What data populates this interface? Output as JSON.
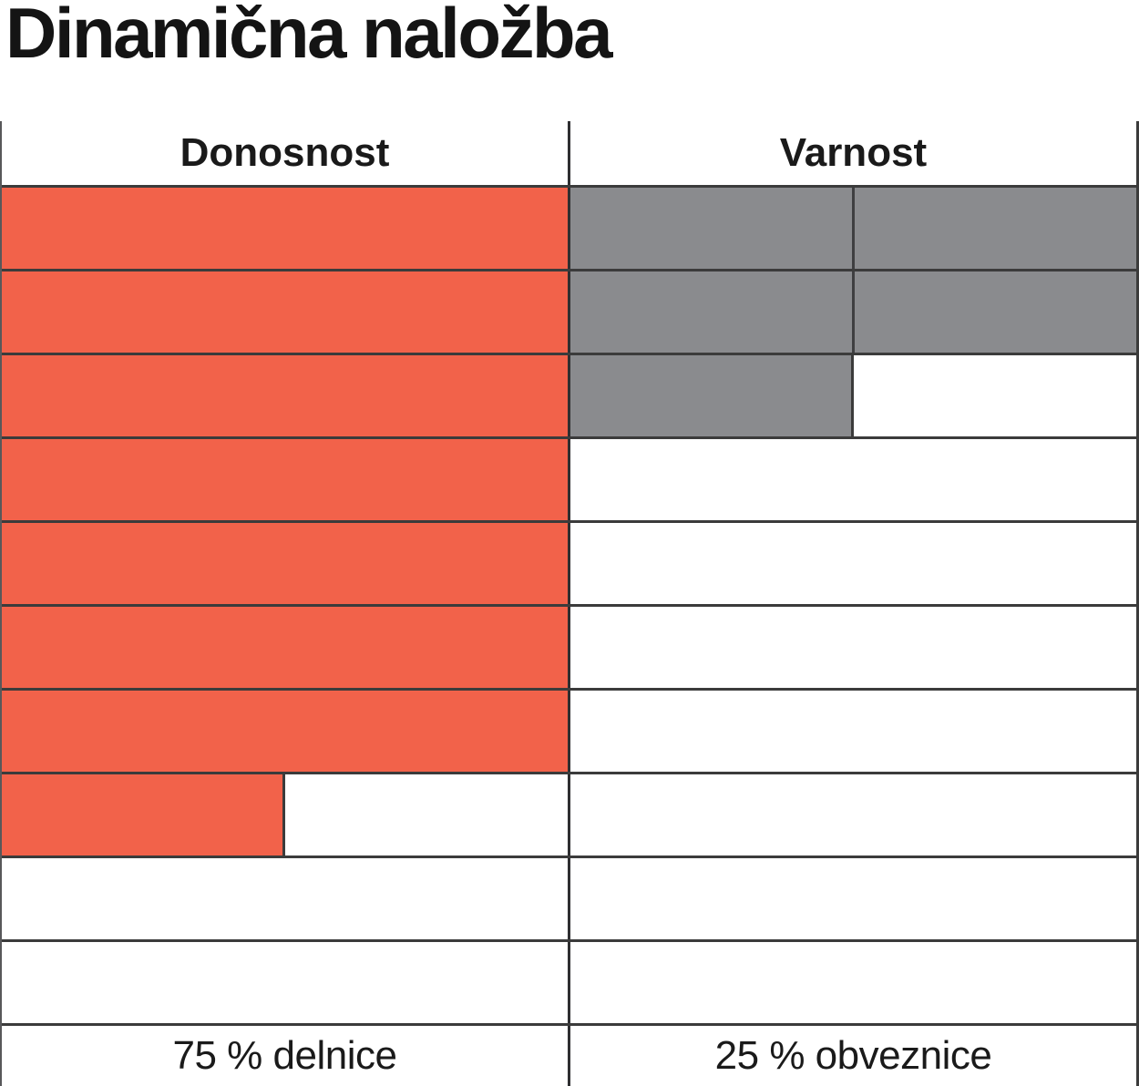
{
  "title": "Dinamična naložba",
  "table": {
    "columns": [
      {
        "header": "Donosnost",
        "footer": "75 % delnice"
      },
      {
        "header": "Varnost",
        "footer": "25 % obveznice"
      }
    ]
  },
  "chart_data": {
    "type": "bar",
    "title": "Dinamična naložba",
    "subtitle": "",
    "description": "Rating grid: two columns of 10 stacked cells filled from the top; fill amount encodes the portfolio split.",
    "categories": [
      "Donosnost",
      "Varnost"
    ],
    "total_rows": 10,
    "series": [
      {
        "name": "Donosnost",
        "filled_rows": 7.5,
        "percent": 75,
        "percent_label": "75 % delnice",
        "color": "#F2624A",
        "internal_divider_on_full_rows": false
      },
      {
        "name": "Varnost",
        "filled_rows": 2.5,
        "percent": 25,
        "percent_label": "25 % obveznice",
        "color": "#8A8B8E",
        "internal_divider_on_full_rows": true
      }
    ],
    "colors": {
      "donosnost_fill": "#F2624A",
      "varnost_fill": "#8A8B8E",
      "grid_line": "#3B3B3B",
      "text": "#1A1A1A",
      "background": "#FFFFFF"
    },
    "layout_hints": {
      "grid": "on",
      "legend": "none",
      "fill_direction": "top-down",
      "partial_cell_fraction": 0.5
    }
  }
}
